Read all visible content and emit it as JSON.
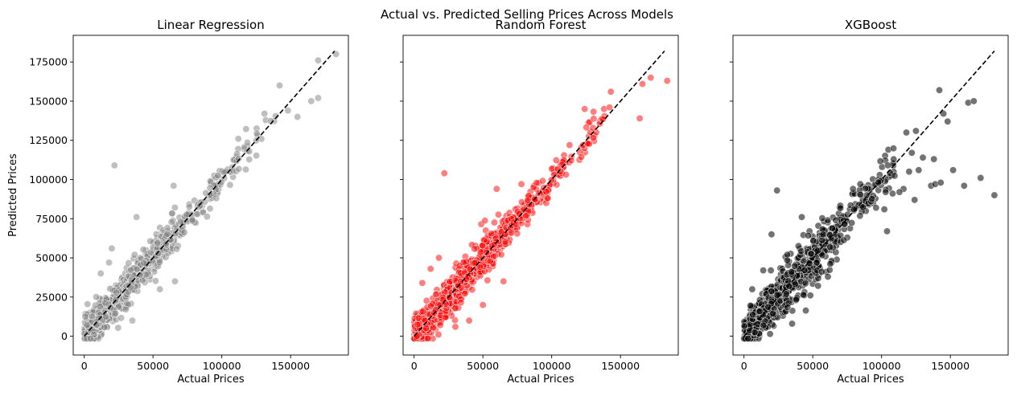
{
  "figure": {
    "suptitle": "Actual vs. Predicted Selling Prices Across Models"
  },
  "chart_data": [
    {
      "type": "scatter",
      "title": "Linear Regression",
      "xlabel": "Actual Prices",
      "ylabel": "Predicted Prices",
      "xlim": [
        -8000,
        192000
      ],
      "ylim": [
        -12000,
        192000
      ],
      "xticks": [
        0,
        50000,
        100000,
        150000
      ],
      "yticks": [
        0,
        25000,
        50000,
        75000,
        100000,
        125000,
        150000,
        175000
      ],
      "point_color": "#808080",
      "point_opacity": 0.5,
      "diagonal": [
        [
          0,
          0
        ],
        [
          182000,
          182000
        ]
      ],
      "outliers": [
        [
          22000,
          109000
        ],
        [
          65000,
          96000
        ],
        [
          38000,
          76000
        ],
        [
          66000,
          35000
        ],
        [
          142000,
          160000
        ],
        [
          155000,
          140000
        ],
        [
          170000,
          152000
        ],
        [
          165000,
          150000
        ],
        [
          170000,
          176000
        ],
        [
          183000,
          180000
        ],
        [
          148000,
          144000
        ],
        [
          131000,
          142000
        ],
        [
          112000,
          126000
        ],
        [
          96000,
          88000
        ],
        [
          120000,
          118000
        ],
        [
          55000,
          30000
        ],
        [
          18000,
          47000
        ],
        [
          12000,
          40000
        ],
        [
          35000,
          10000
        ],
        [
          20000,
          56000
        ]
      ],
      "clusters": [
        {
          "x": [
            0,
            30000
          ],
          "spread": 5500,
          "count": 380
        },
        {
          "x": [
            30000,
            70000
          ],
          "spread": 6000,
          "count": 260
        },
        {
          "x": [
            70000,
            110000
          ],
          "spread": 4500,
          "count": 90
        },
        {
          "x": [
            110000,
            140000
          ],
          "spread": 5000,
          "count": 25
        }
      ]
    },
    {
      "type": "scatter",
      "title": "Random Forest",
      "xlabel": "Actual Prices",
      "ylabel": "",
      "xlim": [
        -8000,
        192000
      ],
      "ylim": [
        -12000,
        192000
      ],
      "xticks": [
        0,
        50000,
        100000,
        150000
      ],
      "yticks": [
        0,
        25000,
        50000,
        75000,
        100000,
        125000,
        150000,
        175000
      ],
      "point_color": "#ff0000",
      "point_opacity": 0.5,
      "diagonal": [
        [
          0,
          0
        ],
        [
          182000,
          182000
        ]
      ],
      "outliers": [
        [
          22000,
          104000
        ],
        [
          60000,
          94000
        ],
        [
          65000,
          35000
        ],
        [
          78000,
          97000
        ],
        [
          97000,
          88000
        ],
        [
          124000,
          145000
        ],
        [
          143000,
          156000
        ],
        [
          138000,
          145000
        ],
        [
          142000,
          146000
        ],
        [
          130000,
          133000
        ],
        [
          164000,
          139000
        ],
        [
          172000,
          165000
        ],
        [
          184000,
          163000
        ],
        [
          166000,
          161000
        ],
        [
          126000,
          123000
        ],
        [
          113000,
          122000
        ],
        [
          18000,
          50000
        ],
        [
          12000,
          43000
        ],
        [
          40000,
          10000
        ],
        [
          50000,
          20000
        ],
        [
          6000,
          34000
        ],
        [
          30000,
          6000
        ]
      ],
      "clusters": [
        {
          "x": [
            0,
            30000
          ],
          "spread": 5500,
          "count": 620
        },
        {
          "x": [
            30000,
            70000
          ],
          "spread": 6000,
          "count": 380
        },
        {
          "x": [
            70000,
            110000
          ],
          "spread": 4500,
          "count": 130
        },
        {
          "x": [
            110000,
            140000
          ],
          "spread": 5000,
          "count": 30
        }
      ]
    },
    {
      "type": "scatter",
      "title": "XGBoost",
      "xlabel": "Actual Prices",
      "ylabel": "",
      "xlim": [
        -8000,
        192000
      ],
      "ylim": [
        -12000,
        192000
      ],
      "xticks": [
        0,
        50000,
        100000,
        150000
      ],
      "yticks": [
        0,
        25000,
        50000,
        75000,
        100000,
        125000,
        150000,
        175000
      ],
      "point_color": "#000000",
      "point_opacity": 0.55,
      "diagonal": [
        [
          0,
          0
        ],
        [
          182000,
          182000
        ]
      ],
      "outliers": [
        [
          24000,
          93000
        ],
        [
          20000,
          65000
        ],
        [
          42000,
          76000
        ],
        [
          142000,
          157000
        ],
        [
          145000,
          142000
        ],
        [
          152000,
          106000
        ],
        [
          148000,
          137000
        ],
        [
          163000,
          149000
        ],
        [
          167000,
          150000
        ],
        [
          172000,
          101000
        ],
        [
          182000,
          90000
        ],
        [
          118000,
          130000
        ],
        [
          125000,
          131000
        ],
        [
          122000,
          117000
        ],
        [
          130000,
          114000
        ],
        [
          138000,
          113000
        ],
        [
          136000,
          96000
        ],
        [
          139000,
          97000
        ],
        [
          143000,
          98000
        ],
        [
          160000,
          96000
        ],
        [
          120000,
          105000
        ],
        [
          127000,
          106000
        ],
        [
          124000,
          87000
        ],
        [
          102000,
          81000
        ],
        [
          104000,
          67000
        ],
        [
          116000,
          94000
        ],
        [
          113000,
          92000
        ],
        [
          108000,
          91000
        ],
        [
          96000,
          82000
        ],
        [
          61000,
          38000
        ],
        [
          35000,
          8000
        ],
        [
          14000,
          42000
        ],
        [
          6000,
          30000
        ]
      ],
      "clusters": [
        {
          "x": [
            0,
            30000
          ],
          "spread": 6500,
          "count": 420
        },
        {
          "x": [
            30000,
            70000
          ],
          "spread": 8500,
          "count": 300
        },
        {
          "x": [
            70000,
            110000
          ],
          "spread": 7000,
          "count": 90
        }
      ]
    }
  ]
}
